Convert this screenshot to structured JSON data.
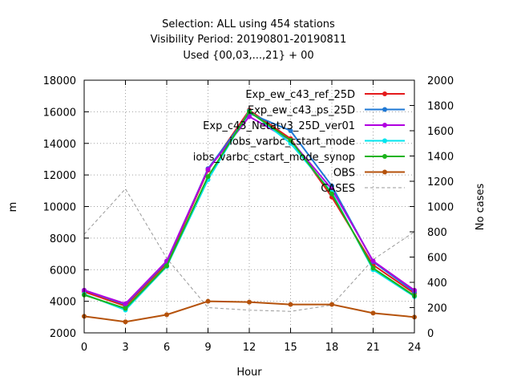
{
  "chart_data": {
    "type": "line",
    "title_lines": [
      "Selection: ALL using   454 stations",
      "Visibility   Period: 20190801-20190811",
      "Used {00,03,...,21} + 00"
    ],
    "xlabel": "Hour",
    "ylabel": "m",
    "y2label": "No cases",
    "x": [
      0,
      3,
      6,
      9,
      12,
      15,
      18,
      21,
      24
    ],
    "xlim": [
      0,
      24
    ],
    "ylim": [
      2000,
      18000
    ],
    "y2lim": [
      0,
      2000
    ],
    "xticks": [
      "0",
      "3",
      "6",
      "9",
      "12",
      "15",
      "18",
      "21",
      "24"
    ],
    "yticks": [
      "2000",
      "4000",
      "6000",
      "8000",
      "10000",
      "12000",
      "14000",
      "16000",
      "18000"
    ],
    "y2ticks": [
      "0",
      "200",
      "400",
      "600",
      "800",
      "1000",
      "1200",
      "1400",
      "1600",
      "1800",
      "2000"
    ],
    "grid": true,
    "legend_position": "top-right",
    "series": [
      {
        "name": "Exp_ew_c43_ref_25D",
        "color": "#e41a1c",
        "marker": "circle",
        "dash": "none",
        "axis": "left",
        "values": [
          4600,
          3700,
          6400,
          12300,
          16100,
          14300,
          10600,
          6300,
          4500
        ]
      },
      {
        "name": "Exp_ew_c43_ps_25D",
        "color": "#1f78d4",
        "marker": "circle",
        "dash": "none",
        "axis": "left",
        "values": [
          4700,
          3800,
          6500,
          12400,
          15900,
          14800,
          11300,
          6500,
          4600
        ]
      },
      {
        "name": "Exp_c43_Netatv3_25D_ver01",
        "color": "#b000e0",
        "marker": "circle",
        "dash": "none",
        "axis": "left",
        "values": [
          4700,
          3850,
          6550,
          12350,
          15700,
          14200,
          11100,
          6550,
          4700
        ]
      },
      {
        "name": "iobs_varbc_cstart_mode",
        "color": "#00e5ee",
        "marker": "circle",
        "dash": "none",
        "axis": "left",
        "values": [
          4450,
          3450,
          6200,
          11700,
          16050,
          14000,
          10900,
          6000,
          4300
        ]
      },
      {
        "name": "iobs_varbc_cstart_mode_synop",
        "color": "#1cb31c",
        "marker": "circle",
        "dash": "none",
        "axis": "left",
        "values": [
          4400,
          3550,
          6250,
          11900,
          16000,
          14200,
          10800,
          6100,
          4350
        ]
      },
      {
        "name": "OBS",
        "color": "#b5520b",
        "marker": "circle",
        "dash": "none",
        "axis": "left",
        "values": [
          3050,
          2700,
          3150,
          4000,
          3950,
          3800,
          3800,
          3250,
          3000
        ]
      },
      {
        "name": "CASES",
        "color": "#999999",
        "marker": "none",
        "dash": "4,3",
        "axis": "right",
        "values": [
          780,
          1140,
          590,
          200,
          180,
          170,
          220,
          580,
          800
        ]
      }
    ]
  }
}
